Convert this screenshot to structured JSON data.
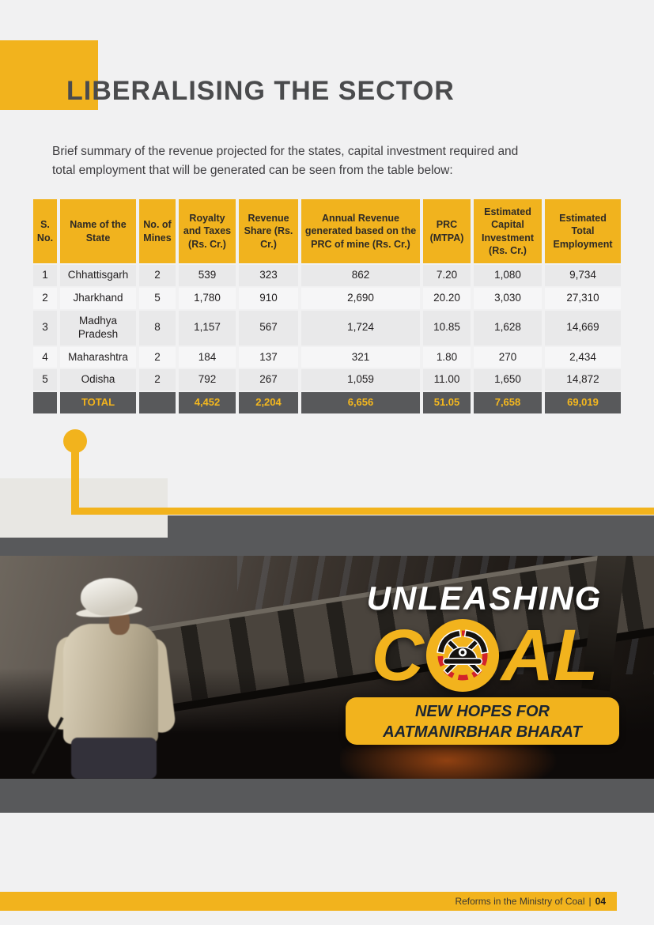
{
  "page": {
    "title": "LIBERALISING THE SECTOR",
    "intro_line1": "Brief summary of the revenue projected for the states, capital investment required and",
    "intro_line2": "total employment that will be generated can be seen from the table below:"
  },
  "table": {
    "headers": [
      "S. No.",
      "Name of the State",
      "No. of Mines",
      "Royalty and Taxes (Rs. Cr.)",
      "Revenue Share (Rs. Cr.)",
      "Annual Revenue generated based on the PRC of mine (Rs. Cr.)",
      "PRC (MTPA)",
      "Estimated Capital Investment (Rs. Cr.)",
      "Estimated Total Employment"
    ],
    "rows": [
      [
        "1",
        "Chhattisgarh",
        "2",
        "539",
        "323",
        "862",
        "7.20",
        "1,080",
        "9,734"
      ],
      [
        "2",
        "Jharkhand",
        "5",
        "1,780",
        "910",
        "2,690",
        "20.20",
        "3,030",
        "27,310"
      ],
      [
        "3",
        "Madhya Pradesh",
        "8",
        "1,157",
        "567",
        "1,724",
        "10.85",
        "1,628",
        "14,669"
      ],
      [
        "4",
        "Maharashtra",
        "2",
        "184",
        "137",
        "321",
        "1.80",
        "270",
        "2,434"
      ],
      [
        "5",
        "Odisha",
        "2",
        "792",
        "267",
        "1,059",
        "11.00",
        "1,650",
        "14,872"
      ]
    ],
    "total_row": [
      "",
      "TOTAL",
      "",
      "4,452",
      "2,204",
      "6,656",
      "51.05",
      "7,658",
      "69,019"
    ]
  },
  "hero": {
    "title_top": "UNLEASHING",
    "coal_c": "C",
    "coal_al": "AL",
    "emblem": "miner-helmet-crossed-pickaxes-badge",
    "tagline_line1": "NEW HOPES FOR",
    "tagline_line2": "AATMANIRBHAR BHARAT"
  },
  "footer": {
    "label": "Reforms in the Ministry of Coal",
    "separator": "|",
    "page_number": "04"
  },
  "colors": {
    "accent_yellow": "#F2B31D",
    "dark_gray": "#58595B",
    "title_gray": "#4A4B4D",
    "page_background": "#F1F1F2",
    "total_text_yellow": "#F5B81E",
    "tagline_navy": "#1B2532"
  }
}
